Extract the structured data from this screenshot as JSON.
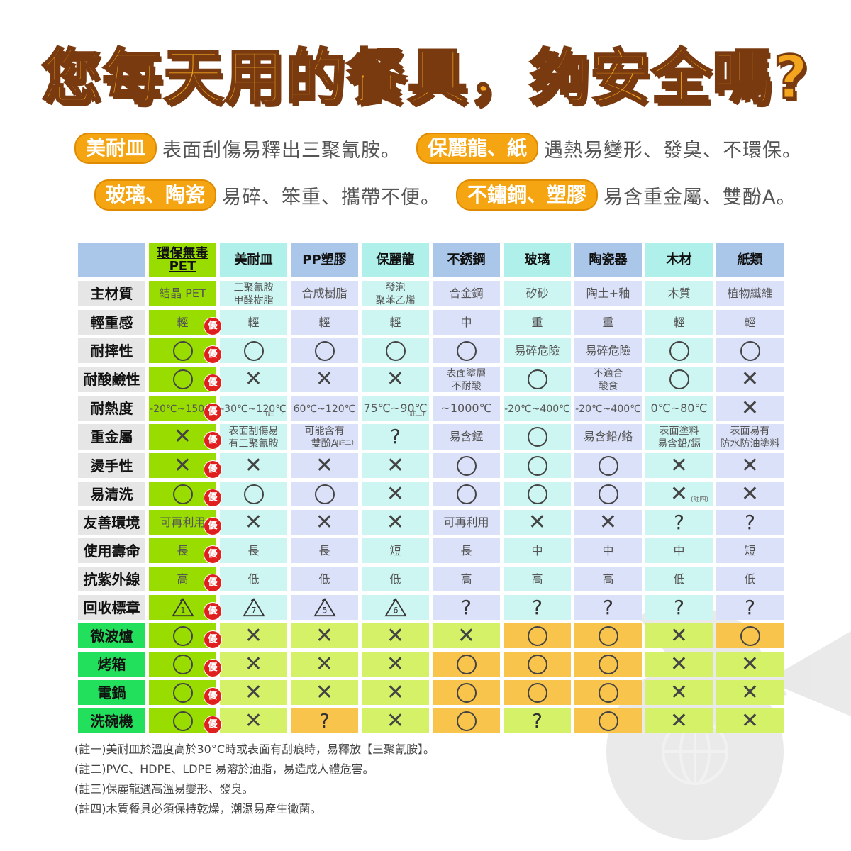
{
  "title": "您每天用的餐具，夠安全嗎?",
  "intro": [
    [
      {
        "tag": "美耐皿",
        "desc": "表面刮傷易釋出三聚氰胺。"
      },
      {
        "tag": "保麗龍、紙",
        "desc": "遇熱易變形、發臭、不環保。"
      }
    ],
    [
      {
        "tag": "玻璃、陶瓷",
        "desc": "易碎、笨重、攜帶不便。"
      },
      {
        "tag": "不鏽鋼、塑膠",
        "desc": "易含重金屬、雙酚A。"
      }
    ]
  ],
  "table": {
    "columns": [
      "環保無毒PET",
      "美耐皿",
      "PP塑膠",
      "保麗龍",
      "不銹鋼",
      "玻璃",
      "陶瓷器",
      "木材",
      "紙類"
    ],
    "badge": "優",
    "rows": [
      {
        "label": "主材質",
        "cells": [
          "結晶 PET",
          "三聚氰胺\n甲醛樹脂",
          "合成樹脂",
          "發泡\n聚苯乙烯",
          "合金鋼",
          "矽砂",
          "陶土+釉",
          "木質",
          "植物纖維"
        ]
      },
      {
        "label": "輕重感",
        "cells": [
          "輕",
          "輕",
          "輕",
          "輕",
          "中",
          "重",
          "重",
          "輕",
          "輕"
        ]
      },
      {
        "label": "耐摔性",
        "cells": [
          "○",
          "○",
          "○",
          "○",
          "○",
          "易碎危險",
          "易碎危險",
          "○",
          "○"
        ]
      },
      {
        "label": "耐酸鹼性",
        "cells": [
          "○",
          "×",
          "×",
          "×",
          "表面塗層\n不耐酸",
          "○",
          "不適合\n酸食",
          "○",
          "×"
        ]
      },
      {
        "label": "耐熱度",
        "cells": [
          "-20℃~150℃",
          "-30℃~120℃",
          "60℃~120℃",
          "75℃~90℃",
          "~1000℃",
          "-20℃~400℃",
          "-20℃~400℃",
          "0℃~80℃",
          "×"
        ]
      },
      {
        "label": "重金屬",
        "cells": [
          "×",
          "表面刮傷易\n有三聚氰胺",
          "可能含有\n雙酚A",
          "?",
          "易含錳",
          "○",
          "易含鉛/鉻",
          "表面塗料\n易含鉛/鎘",
          "表面易有\n防水防油塗料"
        ]
      },
      {
        "label": "燙手性",
        "cells": [
          "×",
          "×",
          "×",
          "×",
          "○",
          "○",
          "○",
          "×",
          "×"
        ]
      },
      {
        "label": "易清洗",
        "cells": [
          "○",
          "○",
          "○",
          "×",
          "○",
          "○",
          "○",
          "×",
          "×"
        ]
      },
      {
        "label": "友善環境",
        "cells": [
          "可再利用",
          "×",
          "×",
          "×",
          "可再利用",
          "×",
          "×",
          "?",
          "?"
        ]
      },
      {
        "label": "使用壽命",
        "cells": [
          "長",
          "長",
          "長",
          "短",
          "長",
          "中",
          "中",
          "中",
          "短"
        ]
      },
      {
        "label": "抗紫外線",
        "cells": [
          "高",
          "低",
          "低",
          "低",
          "高",
          "高",
          "高",
          "低",
          "低"
        ]
      },
      {
        "label": "回收標章",
        "cells": [
          "1",
          "7",
          "5",
          "6",
          "?",
          "?",
          "?",
          "?",
          "?"
        ]
      },
      {
        "label": "微波爐",
        "cells": [
          "○",
          "×",
          "×",
          "×",
          "×",
          "○",
          "○",
          "×",
          "○"
        ]
      },
      {
        "label": "烤箱",
        "cells": [
          "○",
          "×",
          "×",
          "×",
          "○",
          "○",
          "○",
          "×",
          "×"
        ]
      },
      {
        "label": "電鍋",
        "cells": [
          "○",
          "×",
          "×",
          "×",
          "○",
          "○",
          "○",
          "×",
          "×"
        ]
      },
      {
        "label": "洗碗機",
        "cells": [
          "○",
          "×",
          "?",
          "×",
          "○",
          "?",
          "○",
          "×",
          "×"
        ]
      }
    ],
    "cell_notes": {
      "heat_melamine": "(註一)",
      "heavy_pp": "(註二)",
      "heat_styrofoam": "(註三)",
      "clean_wood": "(註四)"
    }
  },
  "notes": [
    "(註一)美耐皿於溫度高於30°C時或表面有刮痕時，易釋放【三聚氰胺】。",
    "(註二)PVC、HDPE、LDPE 易溶於油脂，易造成人體危害。",
    "(註三)保麗龍遇高溫易變形、發臭。",
    "(註四)木質餐具必須保持乾燥，潮濕易產生黴菌。"
  ],
  "colors": {
    "pet": "#99dd00",
    "header": "#aac6e8",
    "cyan": "#cdf5f2",
    "lavender": "#dbe1f8",
    "green_label": "#23e05c",
    "yellow_green": "#d4f167",
    "orange": "#f9c44c",
    "tag": "#f5a512",
    "badge": "#e0201f"
  }
}
